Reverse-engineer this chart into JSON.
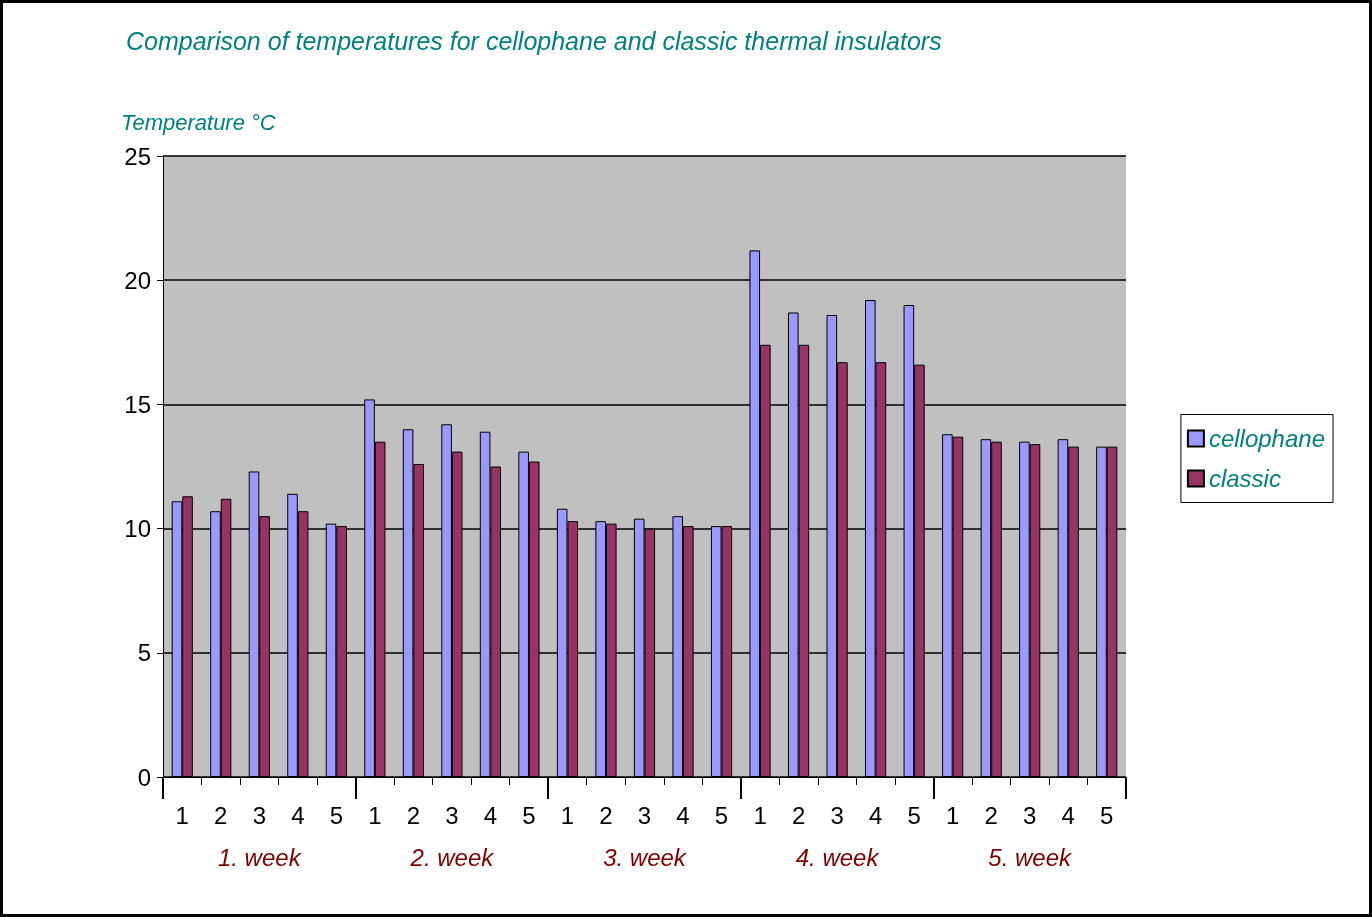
{
  "chart_data": {
    "type": "bar",
    "title": "Comparison of temperatures for cellophane and classic thermal insulators",
    "ylabel": "Temperature °C",
    "categories": [
      "1",
      "2",
      "3",
      "4",
      "5",
      "1",
      "2",
      "3",
      "4",
      "5",
      "1",
      "2",
      "3",
      "4",
      "5",
      "1",
      "2",
      "3",
      "4",
      "5",
      "1",
      "2",
      "3",
      "4",
      "5"
    ],
    "annotations": [
      "1. week",
      "2. week",
      "3. week",
      "4. week",
      "5. week"
    ],
    "series": [
      {
        "name": "cellophane",
        "color": "#9999ff",
        "values": [
          11.1,
          10.7,
          12.3,
          11.4,
          10.2,
          15.2,
          14.0,
          14.2,
          13.9,
          13.1,
          10.8,
          10.3,
          10.4,
          10.5,
          10.1,
          21.2,
          18.7,
          18.6,
          19.2,
          19.0,
          13.8,
          13.6,
          13.5,
          13.6,
          13.3
        ]
      },
      {
        "name": "classic",
        "color": "#993366",
        "values": [
          11.3,
          11.2,
          10.5,
          10.7,
          10.1,
          13.5,
          12.6,
          13.1,
          12.5,
          12.7,
          10.3,
          10.2,
          10.0,
          10.1,
          10.1,
          17.4,
          17.4,
          16.7,
          16.7,
          16.6,
          13.7,
          13.5,
          13.4,
          13.3,
          13.3
        ]
      }
    ],
    "ylim": [
      0,
      25
    ],
    "yticks": [
      0,
      5,
      10,
      15,
      20,
      25
    ],
    "grid": "y",
    "legend": "right"
  }
}
